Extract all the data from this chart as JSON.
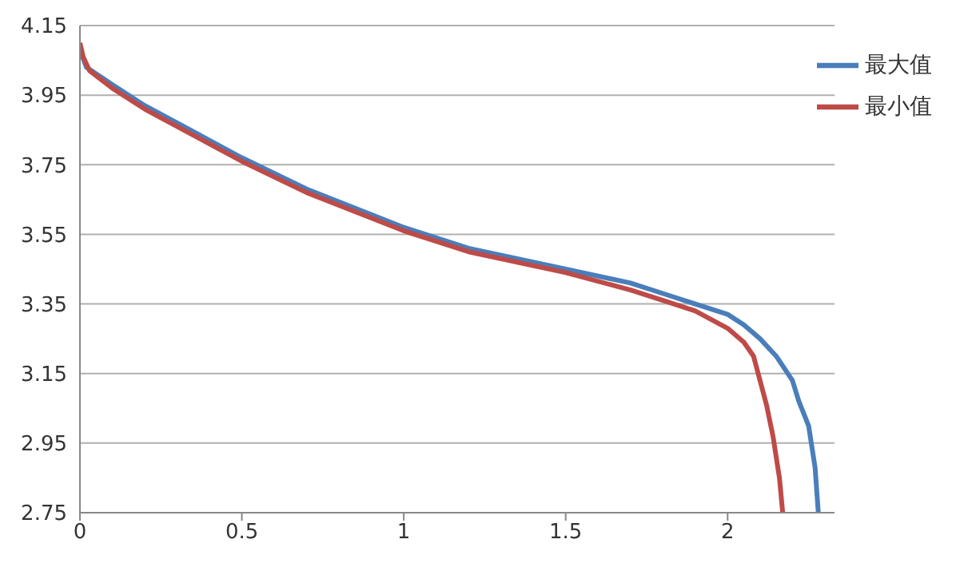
{
  "chart_data": {
    "type": "line",
    "xlim": [
      0,
      2.33
    ],
    "xticks": [
      0,
      0.5,
      1,
      1.5,
      2
    ],
    "ylim": [
      2.75,
      4.15
    ],
    "yticks": [
      2.75,
      2.95,
      3.15,
      3.35,
      3.55,
      3.75,
      3.95,
      4.15
    ],
    "grid": "y",
    "legend": "top right",
    "marker": "none",
    "line_style": "solid",
    "series": [
      {
        "name": "最大值",
        "color": "#4a7ebb",
        "x": [
          0,
          0.02,
          0.1,
          0.2,
          0.3,
          0.5,
          0.7,
          1,
          1.2,
          1.5,
          1.7,
          1.8,
          1.9,
          2,
          2.05,
          2.1,
          2.15,
          2.2,
          2.22,
          2.25,
          2.27,
          2.28
        ],
        "values": [
          4.08,
          4.03,
          3.98,
          3.92,
          3.87,
          3.77,
          3.68,
          3.57,
          3.51,
          3.45,
          3.41,
          3.38,
          3.35,
          3.32,
          3.29,
          3.25,
          3.2,
          3.13,
          3.07,
          3.0,
          2.88,
          2.75
        ]
      },
      {
        "name": "最小值",
        "color": "#be4b48",
        "x": [
          0,
          0.01,
          0.03,
          0.1,
          0.2,
          0.3,
          0.5,
          0.7,
          1,
          1.2,
          1.5,
          1.7,
          1.8,
          1.9,
          2,
          2.05,
          2.08,
          2.1,
          2.12,
          2.14,
          2.16,
          2.17
        ],
        "values": [
          4.1,
          4.06,
          4.02,
          3.97,
          3.91,
          3.86,
          3.76,
          3.67,
          3.56,
          3.5,
          3.44,
          3.39,
          3.36,
          3.33,
          3.28,
          3.24,
          3.2,
          3.13,
          3.06,
          2.97,
          2.85,
          2.75
        ]
      }
    ]
  }
}
